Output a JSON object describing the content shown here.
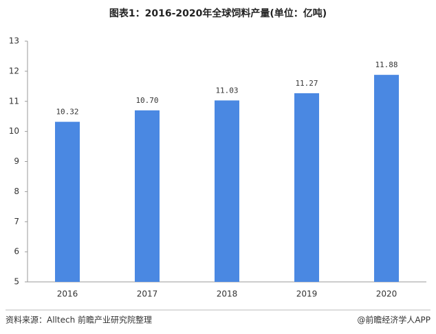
{
  "chart_data": {
    "type": "bar",
    "title": "图表1：2016-2020年全球饲料产量(单位：亿吨)",
    "categories": [
      "2016",
      "2017",
      "2018",
      "2019",
      "2020"
    ],
    "values": [
      10.32,
      10.7,
      11.03,
      11.27,
      11.88
    ],
    "value_labels": [
      "10.32",
      "10.70",
      "11.03",
      "11.27",
      "11.88"
    ],
    "color": "#4a88e2",
    "ylim": [
      5,
      13
    ],
    "yticks": [
      5,
      6,
      7,
      8,
      9,
      10,
      11,
      12,
      13
    ],
    "grid": false,
    "source": "资料来源：Alltech 前瞻产业研究院整理",
    "credit": "@前瞻经济学人APP"
  }
}
